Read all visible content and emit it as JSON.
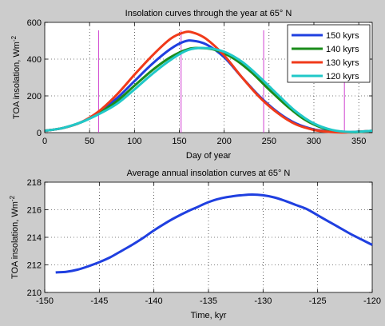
{
  "figure": {
    "background": "#cccccc"
  },
  "chart_data": [
    {
      "type": "line",
      "title": "Insolation curves through the year at 65° N",
      "xlabel": "Day of year",
      "ylabel_main": "TOA insolation, Wm",
      "ylabel_sup": "-2",
      "xlim": [
        0,
        365
      ],
      "ylim": [
        0,
        600
      ],
      "xticks": [
        0,
        50,
        100,
        150,
        200,
        250,
        300,
        350
      ],
      "xtick_labels": [
        "0",
        "50",
        "100",
        "150",
        "200",
        "250",
        "300",
        "350"
      ],
      "yticks": [
        0,
        200,
        400,
        600
      ],
      "ytick_labels": [
        "0",
        "200",
        "400",
        "600"
      ],
      "grid": true,
      "legend_position": "top-right",
      "series": [
        {
          "name": "150 kyrs",
          "color": "#1f3fe0",
          "x": [
            0,
            20,
            40,
            60,
            80,
            100,
            120,
            140,
            155,
            165,
            180,
            200,
            220,
            240,
            260,
            280,
            300,
            320,
            335,
            350,
            365
          ],
          "y": [
            10,
            25,
            55,
            110,
            185,
            280,
            375,
            455,
            495,
            500,
            480,
            410,
            300,
            195,
            110,
            50,
            18,
            5,
            2,
            5,
            10
          ]
        },
        {
          "name": "140 kyrs",
          "color": "#1a8c1a",
          "x": [
            0,
            20,
            40,
            60,
            80,
            100,
            120,
            140,
            160,
            175,
            190,
            210,
            230,
            250,
            270,
            290,
            310,
            330,
            345,
            365
          ],
          "y": [
            10,
            25,
            55,
            105,
            170,
            255,
            340,
            410,
            455,
            460,
            450,
            405,
            330,
            235,
            145,
            70,
            25,
            5,
            2,
            10
          ]
        },
        {
          "name": "130 kyrs",
          "color": "#f03a1a",
          "x": [
            0,
            20,
            40,
            60,
            80,
            100,
            120,
            140,
            155,
            165,
            180,
            200,
            220,
            240,
            260,
            280,
            300,
            320,
            335,
            350,
            365
          ],
          "y": [
            10,
            25,
            55,
            115,
            205,
            315,
            420,
            510,
            545,
            545,
            510,
            420,
            300,
            190,
            105,
            45,
            15,
            3,
            1,
            5,
            10
          ]
        },
        {
          "name": "120 kyrs",
          "color": "#20c8c8",
          "x": [
            0,
            20,
            40,
            60,
            80,
            100,
            120,
            140,
            160,
            180,
            200,
            220,
            240,
            260,
            280,
            300,
            320,
            340,
            365
          ],
          "y": [
            10,
            25,
            55,
            100,
            155,
            235,
            320,
            395,
            450,
            460,
            440,
            385,
            300,
            205,
            115,
            50,
            15,
            4,
            10
          ]
        }
      ],
      "markers": {
        "color": "#d040d0",
        "x": [
          60,
          152,
          244,
          334
        ]
      }
    },
    {
      "type": "line",
      "title": "Average annual insolation curves at 65° N",
      "xlabel": "Time, kyr",
      "ylabel_main": "TOA insolation, Wm",
      "ylabel_sup": "-2",
      "xlim": [
        -150,
        -120
      ],
      "ylim": [
        210,
        218
      ],
      "xticks": [
        -150,
        -145,
        -140,
        -135,
        -130,
        -125,
        -120
      ],
      "xtick_labels": [
        "-150",
        "-145",
        "-140",
        "-135",
        "-130",
        "-125",
        "-120"
      ],
      "yticks": [
        210,
        212,
        214,
        216,
        218
      ],
      "ytick_labels": [
        "210",
        "212",
        "214",
        "216",
        "218"
      ],
      "grid": true,
      "series": [
        {
          "color": "#1f3fe0",
          "x": [
            -149,
            -148,
            -147,
            -146,
            -145,
            -144,
            -143,
            -142,
            -141,
            -140,
            -139,
            -138,
            -137,
            -136,
            -135,
            -134,
            -133,
            -132,
            -131,
            -130,
            -129,
            -128,
            -127,
            -126,
            -125,
            -124,
            -123,
            -122,
            -121,
            -120
          ],
          "y": [
            211.45,
            211.5,
            211.65,
            211.9,
            212.2,
            212.55,
            213.0,
            213.45,
            213.95,
            214.5,
            215.0,
            215.45,
            215.85,
            216.2,
            216.55,
            216.8,
            216.95,
            217.05,
            217.1,
            217.05,
            216.9,
            216.65,
            216.35,
            216.05,
            215.6,
            215.15,
            214.7,
            214.25,
            213.85,
            213.45
          ]
        }
      ]
    }
  ]
}
